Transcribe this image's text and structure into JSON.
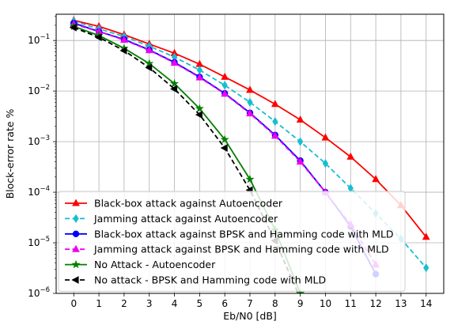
{
  "chart_data": {
    "type": "line",
    "xlabel": "Eb/N0 [dB]",
    "ylabel": "Block-error rate %",
    "x_ticks": [
      0,
      1,
      2,
      3,
      4,
      5,
      6,
      7,
      8,
      9,
      10,
      11,
      12,
      13,
      14
    ],
    "y_scale": "log",
    "ylim": [
      1e-06,
      0.33
    ],
    "xlim": [
      -0.7,
      14.7
    ],
    "y_tick_labels": [
      {
        "base": "10",
        "exp": "−1",
        "value": 0.1
      },
      {
        "base": "10",
        "exp": "−2",
        "value": 0.01
      },
      {
        "base": "10",
        "exp": "−3",
        "value": 0.001
      },
      {
        "base": "10",
        "exp": "−4",
        "value": 0.0001
      },
      {
        "base": "10",
        "exp": "−5",
        "value": 1e-05
      },
      {
        "base": "10",
        "exp": "−6",
        "value": 1e-06
      }
    ],
    "grid": true,
    "legend_position": "lower-left",
    "series": [
      {
        "name": "Black-box attack against Autoencoder",
        "color": "#ff0000",
        "marker": "triangle-up",
        "dash": "solid",
        "x": [
          0,
          1,
          2,
          3,
          4,
          5,
          6,
          7,
          8,
          9,
          10,
          11,
          12,
          13,
          14
        ],
        "y": [
          0.25,
          0.19,
          0.13,
          0.085,
          0.056,
          0.034,
          0.019,
          0.0105,
          0.0055,
          0.0027,
          0.0012,
          0.0005,
          0.00018,
          5.5e-05,
          1.3e-05
        ]
      },
      {
        "name": "Jamming attack against Autoencoder",
        "color": "#17becf",
        "marker": "diamond",
        "dash": "dashed",
        "x": [
          0,
          1,
          2,
          3,
          4,
          5,
          6,
          7,
          8,
          9,
          10,
          11,
          12,
          13,
          14
        ],
        "y": [
          0.24,
          0.17,
          0.12,
          0.077,
          0.047,
          0.026,
          0.013,
          0.006,
          0.0025,
          0.001,
          0.00037,
          0.00012,
          3.8e-05,
          1.2e-05,
          3.2e-06
        ]
      },
      {
        "name": "Black-box attack against BPSK and Hamming code with MLD",
        "color": "#0000ff",
        "marker": "circle",
        "dash": "solid",
        "x": [
          0,
          1,
          2,
          3,
          4,
          5,
          6,
          7,
          8,
          9,
          10,
          11,
          12
        ],
        "y": [
          0.22,
          0.15,
          0.105,
          0.065,
          0.037,
          0.019,
          0.009,
          0.0037,
          0.00135,
          0.00042,
          0.0001,
          2.1e-05,
          2.4e-06
        ]
      },
      {
        "name": "Jamming attack against BPSK and Hamming code with MLD",
        "color": "#ee00ee",
        "marker": "triangle-up",
        "dash": "dashed",
        "x": [
          0,
          1,
          2,
          3,
          4,
          5,
          6,
          7,
          8,
          9,
          10,
          11,
          12
        ],
        "y": [
          0.21,
          0.15,
          0.102,
          0.064,
          0.036,
          0.0185,
          0.0088,
          0.0036,
          0.0013,
          0.0004,
          0.0001,
          2.3e-05,
          3.7e-06
        ]
      },
      {
        "name": "No Attack - Autoencoder",
        "color": "#008000",
        "marker": "star",
        "dash": "solid",
        "x": [
          0,
          1,
          2,
          3,
          4,
          5,
          6,
          7,
          8,
          9
        ],
        "y": [
          0.19,
          0.125,
          0.07,
          0.035,
          0.014,
          0.0045,
          0.0011,
          0.00018,
          1.8e-05,
          1e-06
        ]
      },
      {
        "name": "No attack - BPSK and Hamming code with MLD",
        "color": "#000000",
        "marker": "triangle-left",
        "dash": "dashed",
        "x": [
          0,
          1,
          2,
          3,
          4,
          5,
          6,
          7,
          8,
          9
        ],
        "y": [
          0.18,
          0.115,
          0.063,
          0.029,
          0.011,
          0.0034,
          0.00075,
          0.00011,
          1.1e-05,
          8e-07
        ]
      }
    ]
  }
}
